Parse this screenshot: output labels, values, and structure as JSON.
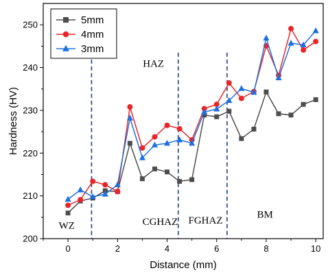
{
  "chart_data": {
    "type": "line",
    "xlabel": "Distance (mm)",
    "ylabel": "Hardness (HV)",
    "xlim": [
      -1,
      10.3
    ],
    "ylim": [
      200,
      255
    ],
    "xticks": [
      "0",
      "2",
      "4",
      "6",
      "8",
      "10"
    ],
    "xtick_values": [
      0,
      2,
      4,
      6,
      8,
      10
    ],
    "yticks": [
      "200",
      "210",
      "220",
      "230",
      "240",
      "250"
    ],
    "ytick_values": [
      200,
      210,
      220,
      230,
      240,
      250
    ],
    "legend_position": "top-left",
    "series": [
      {
        "name": "5mm",
        "color": "#4d4d4d",
        "marker": "square",
        "x": [
          0,
          0.5,
          1,
          1.5,
          2,
          2.5,
          3,
          3.5,
          4,
          4.5,
          5,
          5.5,
          6,
          6.5,
          7,
          7.5,
          8,
          8.5,
          9,
          9.5,
          10
        ],
        "values": [
          206,
          208.8,
          209.5,
          211.2,
          211,
          222.3,
          214,
          216.3,
          215.6,
          213.4,
          213.8,
          228.9,
          228.5,
          229.8,
          223.4,
          225.6,
          234.3,
          229.2,
          228.9,
          231.4,
          232.5
        ]
      },
      {
        "name": "4mm",
        "color": "#e8262a",
        "marker": "circle",
        "x": [
          0,
          0.5,
          1,
          1.5,
          2,
          2.5,
          3,
          3.5,
          4,
          4.5,
          5,
          5.5,
          6,
          6.5,
          7,
          7.5,
          8,
          8.5,
          9,
          9.5,
          10
        ],
        "values": [
          207.8,
          209.1,
          213.4,
          212.6,
          211,
          230.8,
          221.2,
          223.8,
          226.5,
          225.7,
          223.1,
          230.4,
          231.4,
          236.4,
          232.8,
          234.4,
          245.1,
          238.2,
          249.1,
          244.1,
          246.1
        ]
      },
      {
        "name": "3mm",
        "color": "#1f6fe0",
        "marker": "triangle",
        "x": [
          0,
          0.5,
          1,
          1.5,
          2,
          2.5,
          3,
          3.5,
          4,
          4.5,
          5,
          5.5,
          6,
          6.5,
          7,
          7.5,
          8,
          8.5,
          9,
          9.5,
          10
        ],
        "values": [
          209.2,
          211.4,
          209.8,
          210.4,
          212.6,
          228.2,
          218.9,
          221.9,
          222.3,
          223.1,
          222.3,
          229.6,
          230.3,
          232.3,
          235.1,
          234.2,
          246.9,
          237.6,
          245.7,
          245.3,
          248.6
        ]
      }
    ],
    "divider_x": [
      0.95,
      4.45,
      6.42
    ],
    "regions": [
      {
        "text": "WZ",
        "x": -0.05,
        "y": 202.3
      },
      {
        "text": "HAZ",
        "x": 3.45,
        "y": 240.2
      },
      {
        "text": "CGHAZ",
        "x": 3.72,
        "y": 203.2
      },
      {
        "text": "FGHAZ",
        "x": 5.55,
        "y": 203.5
      },
      {
        "text": "BM",
        "x": 7.95,
        "y": 204.9
      }
    ]
  }
}
